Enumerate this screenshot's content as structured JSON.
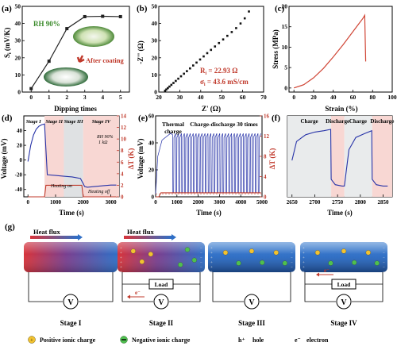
{
  "panels": {
    "a": {
      "label": "(a)",
      "ylabel": "S",
      "ylabel_sub": "i",
      "ylabel_unit": " (mV/K)",
      "xlabel": "Dipping times",
      "annotation": "RH 90%",
      "inset_label": "After coating"
    },
    "b": {
      "label": "(b)",
      "ylabel": "-Z'' (Ω)",
      "xlabel": "Z' (Ω)",
      "r_text": "R",
      "r_sub": "i",
      "r_value": " = 22.93 Ω",
      "sigma_text": "σ",
      "sigma_sub": "i",
      "sigma_value": " = 43.6 mS/cm"
    },
    "c": {
      "label": "(c)",
      "ylabel": "Stress (MPa)",
      "xlabel": "Strain (%)"
    },
    "d": {
      "label": "(d)",
      "ylabel": "Voltage (mV)",
      "y2label": "ΔT (K)",
      "xlabel": "Time (s)",
      "stages": [
        "Stage I",
        "Stage II",
        "Stage III",
        "Stage IV"
      ],
      "rh_note": "RH 90%",
      "load_note": "1 kΩ",
      "heating_on": "Heating on",
      "heating_off": "Heating off"
    },
    "e": {
      "label": "(e)",
      "ylabel": "Voltage (mV)",
      "y2label": "ΔT (K)",
      "xlabel": "Time (s)",
      "annotation_1": "Thermal",
      "annotation_2": "charge",
      "annotation_3": "Charge-discharge 30 times"
    },
    "f": {
      "label": "(f)",
      "xlabel": "Time (s)",
      "phases": [
        "Charge",
        "Discharge",
        "Charge",
        "Discharge"
      ]
    },
    "g": {
      "label": "(g)",
      "heat_flux_1": "Heat flux",
      "heat_flux_2": "Heat flux",
      "load_1": "Load",
      "load_2": "Load",
      "volt_symbol": "V",
      "electron_1": "e⁻",
      "electron_2": "e⁻",
      "stages": [
        "Stage I",
        "Stage II",
        "Stage III",
        "Stage IV"
      ],
      "legend_pos": "Positive ionic charge",
      "legend_neg": "Negative ionic charge",
      "legend_hole_sym": "h⁺",
      "legend_hole": "hole",
      "legend_e_sym": "e⁻",
      "legend_e": "electron"
    }
  },
  "chart_data": [
    {
      "type": "line",
      "panel": "a",
      "x": [
        0,
        1,
        2,
        3,
        4,
        5
      ],
      "values": [
        2,
        18,
        37,
        44,
        44.2,
        44
      ],
      "xlim": [
        -0.5,
        5.5
      ],
      "ylim": [
        0,
        50
      ],
      "xticks": [
        "0",
        "1",
        "2",
        "3",
        "4",
        "5"
      ],
      "yticks": [
        "0",
        "10",
        "20",
        "30",
        "40",
        "50"
      ],
      "color": "#222222"
    },
    {
      "type": "scatter",
      "panel": "b",
      "x": [
        23.0,
        23.6,
        24.3,
        25.1,
        26.0,
        27.0,
        28.1,
        29.3,
        30.6,
        32.0,
        33.4,
        34.9,
        36.4,
        38.0,
        39.7,
        41.4,
        43.1,
        44.9,
        46.8,
        48.7,
        50.7,
        52.7,
        54.8,
        56.9,
        59.0,
        61.0,
        63.0
      ],
      "values": [
        0.8,
        1.5,
        2.3,
        3.2,
        4.2,
        5.3,
        6.5,
        7.8,
        9.2,
        10.7,
        12.2,
        13.8,
        15.5,
        17.2,
        19.0,
        20.8,
        22.7,
        24.6,
        26.6,
        28.6,
        30.7,
        32.8,
        35.0,
        37.3,
        40.0,
        43.0,
        47.0
      ],
      "xlim": [
        20,
        70
      ],
      "ylim": [
        0,
        50
      ],
      "xticks": [
        "20",
        "30",
        "40",
        "50",
        "60",
        "70"
      ],
      "yticks": [
        "0",
        "10",
        "20",
        "30",
        "40",
        "50"
      ]
    },
    {
      "type": "line",
      "panel": "c",
      "x": [
        0,
        10,
        20,
        30,
        40,
        50,
        60,
        65,
        70,
        72,
        73
      ],
      "values": [
        0,
        0.8,
        2.5,
        4.8,
        7.6,
        10.6,
        13.8,
        15.4,
        17.0,
        17.8,
        6.5
      ],
      "xlim": [
        -5,
        100
      ],
      "ylim": [
        -1,
        20
      ],
      "xticks": [
        "0",
        "20",
        "40",
        "60",
        "80",
        "100"
      ],
      "yticks": [
        "0",
        "5",
        "10",
        "15",
        "20"
      ],
      "color": "#d04535"
    },
    {
      "type": "line",
      "panel": "d",
      "x": [
        0,
        100,
        200,
        300,
        400,
        500,
        600,
        700,
        1000,
        1300,
        1600,
        1900,
        2000,
        2050,
        2150,
        2400,
        2700,
        3000,
        3200
      ],
      "values": [
        -2,
        20,
        34,
        42,
        46,
        48,
        49,
        -20,
        -21,
        -22,
        -23,
        -25,
        -32,
        -36,
        -37,
        -36,
        -35,
        -34,
        -34
      ],
      "series_temp": {
        "x": [
          0,
          600,
          650,
          1950,
          2000,
          3200
        ],
        "values": [
          0,
          0,
          2,
          2,
          0,
          0
        ]
      },
      "xlim": [
        -150,
        3300
      ],
      "ylim": [
        -50,
        60
      ],
      "y2lim": [
        0,
        14
      ],
      "xticks": [
        "0",
        "1000",
        "2000",
        "3000"
      ],
      "yticks": [
        "-40",
        "-20",
        "0",
        "20",
        "40"
      ],
      "y2ticks": [
        "0",
        "2",
        "4",
        "6",
        "8",
        "10",
        "12",
        "14"
      ],
      "color": "#2733a8",
      "temp_color": "#c0392b"
    },
    {
      "type": "line",
      "panel": "e",
      "cycles": 30,
      "xlim": [
        0,
        5000
      ],
      "ylim": [
        0,
        60
      ],
      "y2lim": [
        0,
        16
      ],
      "xticks": [
        "0",
        "1000",
        "2000",
        "3000",
        "4000",
        "5000"
      ],
      "yticks": [
        "0",
        "20",
        "40",
        "60"
      ],
      "y2ticks": [
        "0",
        "4",
        "8",
        "12",
        "16"
      ],
      "color": "#2733a8",
      "temp_color": "#c0392b"
    },
    {
      "type": "line",
      "panel": "f",
      "x": [
        2650,
        2660,
        2680,
        2700,
        2720,
        2735,
        2736,
        2745,
        2760,
        2765,
        2775,
        2790,
        2810,
        2825,
        2826,
        2835,
        2850,
        2860
      ],
      "values": [
        22,
        36,
        41,
        43,
        44,
        45,
        8,
        4,
        3,
        3,
        30,
        39,
        42,
        44,
        8,
        4,
        3,
        3
      ],
      "xlim": [
        2640,
        2870
      ],
      "xticks": [
        "2650",
        "2700",
        "2750",
        "2800",
        "2850"
      ],
      "color": "#2733a8"
    }
  ]
}
